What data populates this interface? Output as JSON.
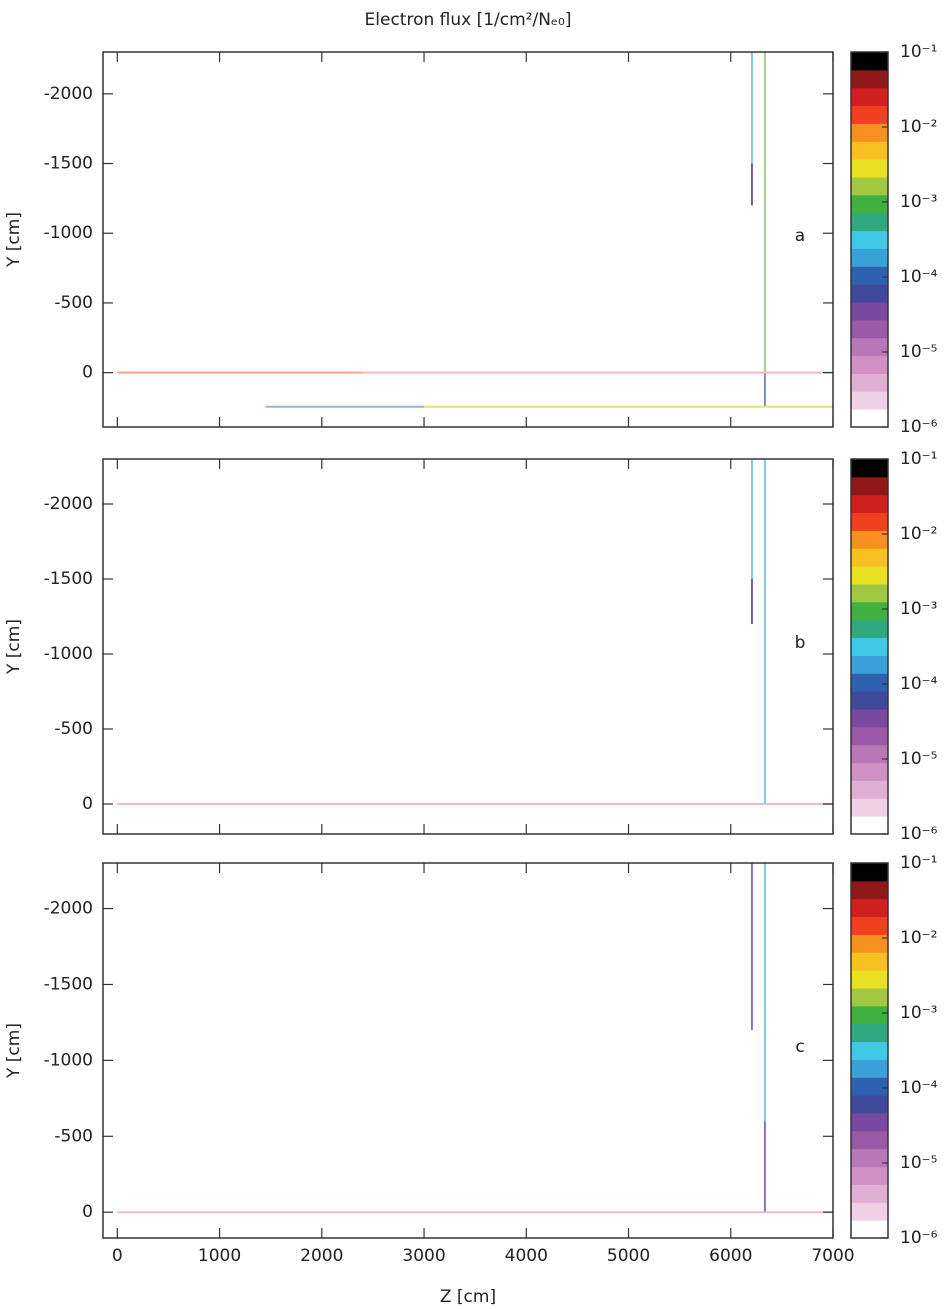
{
  "chart_data": [
    {
      "type": "heatmap",
      "title": "Electron flux [1/cm²/Nₑ₀]",
      "panel_label": "a",
      "ylabel": "Y [cm]",
      "xlim": [
        -140,
        7000
      ],
      "xticks": [
        0,
        1000,
        2000,
        3000,
        4000,
        5000,
        6000,
        7000
      ],
      "ylim": [
        -2300,
        390
      ],
      "yticks": [
        -2000,
        -1500,
        -1000,
        -500,
        0
      ],
      "tracks": [
        {
          "z": [
            6207,
            6207
          ],
          "y": [
            -2300,
            -1500
          ],
          "color": "#7fc8e8"
        },
        {
          "z": [
            6207,
            6207
          ],
          "y": [
            -1500,
            -1200
          ],
          "color": "#6a5bb0"
        },
        {
          "z": [
            6334,
            6334
          ],
          "y": [
            -2300,
            0
          ],
          "color": "#a8d08a"
        },
        {
          "z": [
            6334,
            6334
          ],
          "y": [
            0,
            250
          ],
          "color": "#7a8ad0"
        },
        {
          "z": [
            0,
            2400
          ],
          "y": [
            0,
            0
          ],
          "color": "#f0a890"
        },
        {
          "z": [
            2400,
            7000
          ],
          "y": [
            0,
            0
          ],
          "color": "#f0b8c8"
        },
        {
          "z": [
            1450,
            3000
          ],
          "y": [
            245,
            245
          ],
          "color": "#9ab0d8"
        },
        {
          "z": [
            3000,
            7000
          ],
          "y": [
            245,
            245
          ],
          "color": "#e8e070"
        }
      ],
      "colorbar": {
        "lim": [
          1e-06,
          0.1
        ],
        "log": true,
        "ticks": [
          {
            "value": 0.1,
            "label": "10⁻¹"
          },
          {
            "value": 0.01,
            "label": "10⁻²"
          },
          {
            "value": 0.001,
            "label": "10⁻³"
          },
          {
            "value": 0.0001,
            "label": "10⁻⁴"
          },
          {
            "value": 1e-05,
            "label": "10⁻⁵"
          },
          {
            "value": 1e-06,
            "label": "10⁻⁶"
          }
        ],
        "colors": [
          "#ffffff",
          "#f0d0e4",
          "#e0b0d4",
          "#d090c4",
          "#b878b8",
          "#9a5aa8",
          "#7a48a0",
          "#3f4a9a",
          "#3060b0",
          "#3aa0d8",
          "#40c8e8",
          "#30a880",
          "#40b040",
          "#a0c840",
          "#e8e020",
          "#f8c020",
          "#f89020",
          "#f04020",
          "#d02020",
          "#901818",
          "#000000"
        ]
      }
    },
    {
      "type": "heatmap",
      "panel_label": "b",
      "ylabel": "Y [cm]",
      "xlim": [
        -140,
        7000
      ],
      "xticks": [
        0,
        1000,
        2000,
        3000,
        4000,
        5000,
        6000,
        7000
      ],
      "ylim": [
        -2300,
        200
      ],
      "yticks": [
        -2000,
        -1500,
        -1000,
        -500,
        0
      ],
      "tracks": [
        {
          "z": [
            6207,
            6207
          ],
          "y": [
            -2300,
            -1500
          ],
          "color": "#7fc8e8"
        },
        {
          "z": [
            6207,
            6207
          ],
          "y": [
            -1500,
            -1200
          ],
          "color": "#6a5bb0"
        },
        {
          "z": [
            6334,
            6334
          ],
          "y": [
            -2300,
            0
          ],
          "color": "#7fc8e8"
        },
        {
          "z": [
            0,
            7000
          ],
          "y": [
            0,
            0
          ],
          "color": "#f0b8c8"
        }
      ],
      "colorbar": {
        "lim": [
          1e-06,
          0.1
        ],
        "log": true,
        "ticks": [
          {
            "value": 0.1,
            "label": "10⁻¹"
          },
          {
            "value": 0.01,
            "label": "10⁻²"
          },
          {
            "value": 0.001,
            "label": "10⁻³"
          },
          {
            "value": 0.0001,
            "label": "10⁻⁴"
          },
          {
            "value": 1e-05,
            "label": "10⁻⁵"
          },
          {
            "value": 1e-06,
            "label": "10⁻⁶"
          }
        ],
        "colors": [
          "#ffffff",
          "#f0d0e4",
          "#e0b0d4",
          "#d090c4",
          "#b878b8",
          "#9a5aa8",
          "#7a48a0",
          "#3f4a9a",
          "#3060b0",
          "#3aa0d8",
          "#40c8e8",
          "#30a880",
          "#40b040",
          "#a0c840",
          "#e8e020",
          "#f8c020",
          "#f89020",
          "#f04020",
          "#d02020",
          "#901818",
          "#000000"
        ]
      }
    },
    {
      "type": "heatmap",
      "panel_label": "c",
      "ylabel": "Y [cm]",
      "xlabel": "Z [cm]",
      "xlim": [
        -140,
        7000
      ],
      "xticks": [
        0,
        1000,
        2000,
        3000,
        4000,
        5000,
        6000,
        7000
      ],
      "ylim": [
        -2300,
        170
      ],
      "yticks": [
        -2000,
        -1500,
        -1000,
        -500,
        0
      ],
      "tracks": [
        {
          "z": [
            6207,
            6207
          ],
          "y": [
            -2300,
            -1200
          ],
          "color": "#8a70c0"
        },
        {
          "z": [
            6334,
            6334
          ],
          "y": [
            -2300,
            -600
          ],
          "color": "#7fc8e8"
        },
        {
          "z": [
            6334,
            6334
          ],
          "y": [
            -600,
            0
          ],
          "color": "#8a70c0"
        },
        {
          "z": [
            0,
            7000
          ],
          "y": [
            0,
            0
          ],
          "color": "#f0b8c8"
        }
      ],
      "colorbar": {
        "lim": [
          1e-06,
          0.1
        ],
        "log": true,
        "ticks": [
          {
            "value": 0.1,
            "label": "10⁻¹"
          },
          {
            "value": 0.01,
            "label": "10⁻²"
          },
          {
            "value": 0.001,
            "label": "10⁻³"
          },
          {
            "value": 0.0001,
            "label": "10⁻⁴"
          },
          {
            "value": 1e-05,
            "label": "10⁻⁵"
          },
          {
            "value": 1e-06,
            "label": "10⁻⁶"
          }
        ],
        "colors": [
          "#ffffff",
          "#f0d0e4",
          "#e0b0d4",
          "#d090c4",
          "#b878b8",
          "#9a5aa8",
          "#7a48a0",
          "#3f4a9a",
          "#3060b0",
          "#3aa0d8",
          "#40c8e8",
          "#30a880",
          "#40b040",
          "#a0c840",
          "#e8e020",
          "#f8c020",
          "#f89020",
          "#f04020",
          "#d02020",
          "#901818",
          "#000000"
        ]
      }
    }
  ]
}
